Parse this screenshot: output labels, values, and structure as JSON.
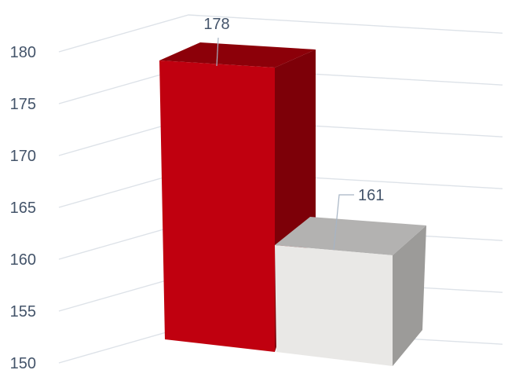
{
  "chart_data": {
    "type": "bar",
    "three_d": true,
    "categories": [
      "",
      ""
    ],
    "values": [
      178,
      161
    ],
    "data_labels": [
      "178",
      "161"
    ],
    "ylim": [
      150,
      180
    ],
    "ytick_labels": [
      "150",
      "155",
      "160",
      "165",
      "170",
      "175",
      "180"
    ],
    "grid": true,
    "legend": "none",
    "colors": {
      "bar1_front": "#c0000f",
      "bar1_top": "#8c0009",
      "bar1_side": "#7d0008",
      "bar2_front": "#e9e8e6",
      "bar2_top": "#b3b2b1",
      "bar2_side": "#9c9b99",
      "grid": "#dde2e8",
      "text": "#44546a"
    }
  }
}
